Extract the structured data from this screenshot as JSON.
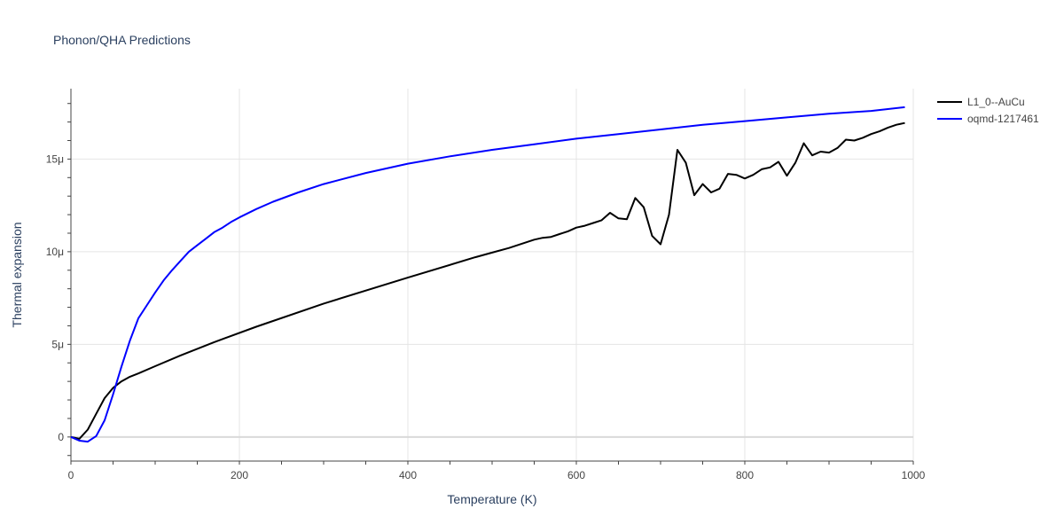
{
  "chart_data": {
    "type": "line",
    "title": "Phonon/QHA Predictions",
    "xlabel": "Temperature (K)",
    "ylabel": "Thermal expansion",
    "xlim": [
      0,
      1000
    ],
    "ylim": [
      -1.3e-06,
      1.88e-05
    ],
    "grid": true,
    "legend_placement": "top-right",
    "x_ticks": [
      0,
      200,
      400,
      600,
      800,
      1000
    ],
    "x_tick_labels": [
      "0",
      "200",
      "400",
      "600",
      "800",
      "1000"
    ],
    "y_ticks": [
      0,
      5e-06,
      1e-05,
      1.5e-05
    ],
    "y_tick_labels": [
      "0",
      "5μ",
      "10μ",
      "15μ"
    ],
    "series": [
      {
        "name": "L1_0--AuCu",
        "color": "#000000",
        "x": [
          0,
          10,
          20,
          30,
          40,
          50,
          60,
          70,
          80,
          100,
          130,
          170,
          220,
          300,
          400,
          480,
          500,
          520,
          530,
          540,
          550,
          560,
          570,
          580,
          590,
          600,
          610,
          620,
          630,
          640,
          650,
          660,
          670,
          680,
          690,
          700,
          710,
          720,
          730,
          740,
          750,
          760,
          770,
          780,
          790,
          800,
          810,
          820,
          830,
          840,
          850,
          860,
          870,
          880,
          890,
          900,
          910,
          920,
          930,
          940,
          950,
          960,
          970,
          980,
          990
        ],
        "y": [
          0,
          -1e-07,
          4e-07,
          1.25e-06,
          2.1e-06,
          2.65e-06,
          3e-06,
          3.25e-06,
          3.43e-06,
          3.82e-06,
          4.4e-06,
          5.12e-06,
          5.95e-06,
          7.2e-06,
          8.6e-06,
          9.7e-06,
          9.95e-06,
          1.02e-05,
          1.035e-05,
          1.05e-05,
          1.065e-05,
          1.075e-05,
          1.08e-05,
          1.095e-05,
          1.11e-05,
          1.13e-05,
          1.14e-05,
          1.155e-05,
          1.17e-05,
          1.21e-05,
          1.18e-05,
          1.175e-05,
          1.29e-05,
          1.24e-05,
          1.085e-05,
          1.04e-05,
          1.2e-05,
          1.55e-05,
          1.48e-05,
          1.305e-05,
          1.365e-05,
          1.32e-05,
          1.34e-05,
          1.42e-05,
          1.415e-05,
          1.395e-05,
          1.415e-05,
          1.445e-05,
          1.455e-05,
          1.485e-05,
          1.41e-05,
          1.48e-05,
          1.585e-05,
          1.52e-05,
          1.54e-05,
          1.535e-05,
          1.56e-05,
          1.605e-05,
          1.6e-05,
          1.615e-05,
          1.635e-05,
          1.65e-05,
          1.67e-05,
          1.685e-05,
          1.695e-05
        ]
      },
      {
        "name": "oqmd-1217461",
        "color": "#0000ff",
        "x": [
          0,
          10,
          20,
          30,
          40,
          50,
          60,
          70,
          80,
          90,
          100,
          110,
          120,
          130,
          140,
          150,
          160,
          170,
          180,
          190,
          200,
          220,
          240,
          270,
          300,
          350,
          400,
          450,
          500,
          550,
          600,
          650,
          700,
          750,
          800,
          850,
          900,
          950,
          990
        ],
        "y": [
          0,
          -2e-07,
          -2.5e-07,
          5e-08,
          9e-07,
          2.3e-06,
          3.8e-06,
          5.2e-06,
          6.4e-06,
          7.1e-06,
          7.8e-06,
          8.45e-06,
          9e-06,
          9.5e-06,
          1e-05,
          1.035e-05,
          1.07e-05,
          1.105e-05,
          1.13e-05,
          1.16e-05,
          1.185e-05,
          1.23e-05,
          1.27e-05,
          1.32e-05,
          1.365e-05,
          1.425e-05,
          1.475e-05,
          1.515e-05,
          1.55e-05,
          1.58e-05,
          1.61e-05,
          1.635e-05,
          1.66e-05,
          1.685e-05,
          1.705e-05,
          1.725e-05,
          1.745e-05,
          1.76e-05,
          1.78e-05
        ]
      }
    ]
  }
}
